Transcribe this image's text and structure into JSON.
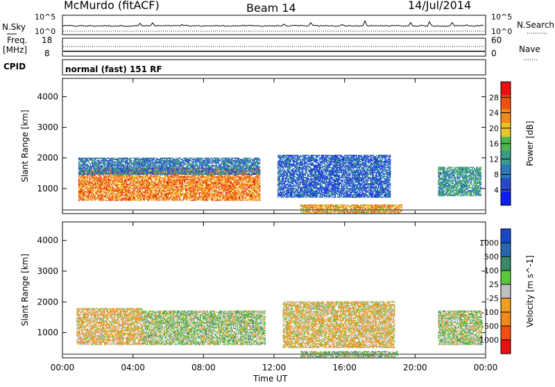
{
  "header": {
    "station": "McMurdo (fitACF)",
    "beam": "Beam 14",
    "date": "14/Jul/2014"
  },
  "summary_panels": {
    "nsky_label": "N.Sky",
    "nsky_ticks": [
      "10^5",
      "10^0"
    ],
    "nsearch_label": "N.Search",
    "nsearch_ticks": [
      "10^5",
      "10^0"
    ],
    "freq_label": "Freq.",
    "freq_unit": "[MHz]",
    "freq_ticks": [
      "18",
      "8"
    ],
    "nave_label": "Nave",
    "nave_ticks": [
      "60",
      "0"
    ],
    "cpid_label": "CPID",
    "cpid_text": "normal (fast) 151 RF"
  },
  "chart_data": [
    {
      "type": "heatmap",
      "title": "",
      "ylabel": "Slant Range [km]",
      "ylim": [
        180,
        4600
      ],
      "yticks": [
        1000,
        2000,
        3000,
        4000
      ],
      "xlabel": "Time UT",
      "xticks": [
        "00:00",
        "04:00",
        "08:00",
        "12:00",
        "16:00",
        "20:00",
        "00:00"
      ],
      "colorbar": {
        "label": "Power [dB]",
        "range": [
          0,
          32
        ],
        "ticks": [
          4,
          8,
          12,
          16,
          20,
          24,
          28
        ],
        "colors": [
          "#0a1ef0",
          "#2848c8",
          "#2a7ab8",
          "#3a9a88",
          "#4cb64a",
          "#e8c828",
          "#f08a18",
          "#f05010",
          "#e81010"
        ]
      },
      "echo_regions": [
        {
          "t0": 0.9,
          "t1": 11.2,
          "r0": 600,
          "r1": 1650,
          "value": 24
        },
        {
          "t0": 0.9,
          "t1": 11.2,
          "r0": 1450,
          "r1": 2000,
          "value": 9
        },
        {
          "t0": 12.2,
          "t1": 18.6,
          "r0": 700,
          "r1": 2100,
          "value": 7
        },
        {
          "t0": 13.5,
          "t1": 19.2,
          "r0": 200,
          "r1": 450,
          "value": 22
        },
        {
          "t0": 21.3,
          "t1": 23.7,
          "r0": 750,
          "r1": 1700,
          "value": 12
        }
      ]
    },
    {
      "type": "heatmap",
      "title": "",
      "ylabel": "Slant Range [km]",
      "ylim": [
        180,
        4600
      ],
      "yticks": [
        1000,
        2000,
        3000,
        4000
      ],
      "xlabel": "Time UT",
      "xticks": [
        "00:00",
        "04:00",
        "08:00",
        "12:00",
        "16:00",
        "20:00",
        "00:00"
      ],
      "colorbar": {
        "label": "Velocity [m s^-1]",
        "range": [
          -1250,
          1250
        ],
        "ticks": [
          -1000,
          -500,
          -100,
          -25,
          25,
          100,
          500,
          1000
        ],
        "tick_labels": [
          "-1000",
          "-500",
          "-100",
          "-25",
          "25",
          "100",
          "500",
          "1000"
        ],
        "colors": [
          "#e81010",
          "#f05010",
          "#f08a18",
          "#f0a020",
          "#c0c0c0",
          "#5ac83a",
          "#3a8a6a",
          "#2868b0",
          "#1848c8"
        ]
      },
      "echo_regions": [
        {
          "t0": 0.8,
          "t1": 4.5,
          "r0": 600,
          "r1": 1800,
          "value": -200
        },
        {
          "t0": 4.5,
          "t1": 11.5,
          "r0": 600,
          "r1": 1700,
          "value": 150
        },
        {
          "t0": 12.5,
          "t1": 18.8,
          "r0": 500,
          "r1": 2000,
          "value": -150
        },
        {
          "t0": 13.5,
          "t1": 19.0,
          "r0": 200,
          "r1": 400,
          "value": 200
        },
        {
          "t0": 21.3,
          "t1": 23.8,
          "r0": 600,
          "r1": 1700,
          "value": 120
        }
      ]
    }
  ]
}
